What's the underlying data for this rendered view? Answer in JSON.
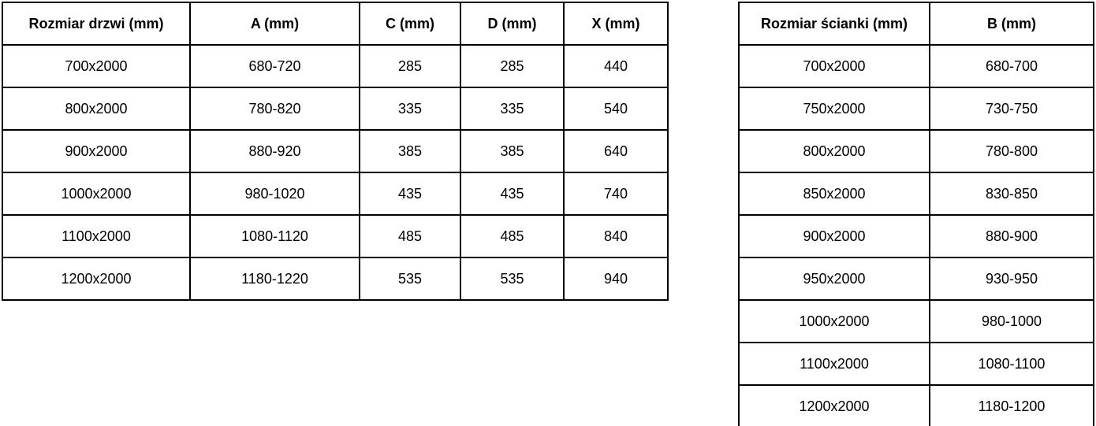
{
  "colors": {
    "border": "#000000",
    "text": "#000000",
    "background": "#ffffff"
  },
  "doors_table": {
    "headers": [
      "Rozmiar drzwi (mm)",
      "A (mm)",
      "C (mm)",
      "D (mm)",
      "X (mm)"
    ],
    "rows": [
      [
        "700x2000",
        "680-720",
        "285",
        "285",
        "440"
      ],
      [
        "800x2000",
        "780-820",
        "335",
        "335",
        "540"
      ],
      [
        "900x2000",
        "880-920",
        "385",
        "385",
        "640"
      ],
      [
        "1000x2000",
        "980-1020",
        "435",
        "435",
        "740"
      ],
      [
        "1100x2000",
        "1080-1120",
        "485",
        "485",
        "840"
      ],
      [
        "1200x2000",
        "1180-1220",
        "535",
        "535",
        "940"
      ]
    ]
  },
  "wall_table": {
    "headers": [
      "Rozmiar ścianki (mm)",
      "B (mm)"
    ],
    "rows": [
      [
        "700x2000",
        "680-700"
      ],
      [
        "750x2000",
        "730-750"
      ],
      [
        "800x2000",
        "780-800"
      ],
      [
        "850x2000",
        "830-850"
      ],
      [
        "900x2000",
        "880-900"
      ],
      [
        "950x2000",
        "930-950"
      ],
      [
        "1000x2000",
        "980-1000"
      ],
      [
        "1100x2000",
        "1080-1100"
      ],
      [
        "1200x2000",
        "1180-1200"
      ]
    ]
  }
}
